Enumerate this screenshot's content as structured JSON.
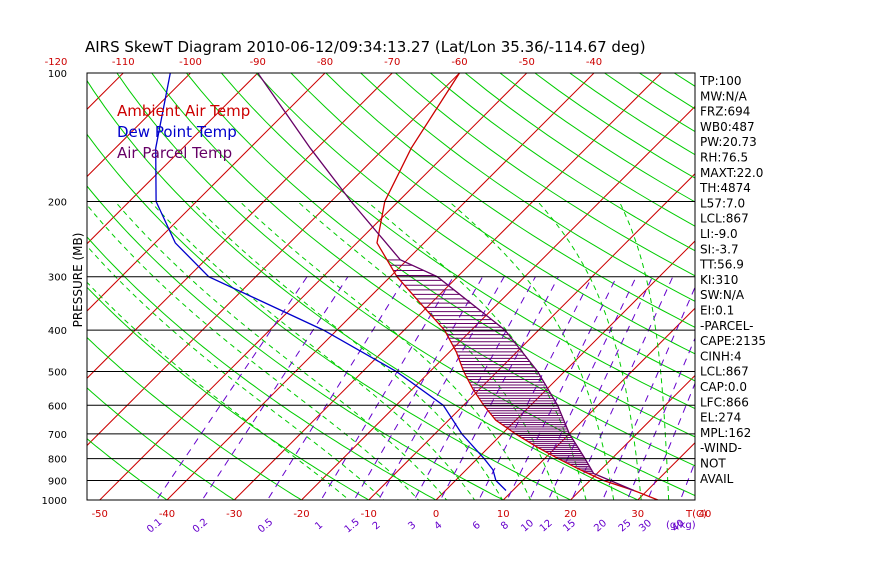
{
  "chart_data": {
    "type": "line",
    "title": "AIRS SkewT Diagram 2010-06-12/09:34:13.27 (Lat/Lon 35.36/-114.67 deg)",
    "ylabel": "PRESSURE (MB)",
    "xlabel_bottom_unit": "T(C)",
    "mixing_ratio_unit": "(g/kg)",
    "pressure_ticks": [
      "100",
      "200",
      "300",
      "400",
      "500",
      "600",
      "700",
      "800",
      "900",
      "1000"
    ],
    "top_temp_ticks": [
      "-120",
      "-110",
      "-100",
      "-90",
      "-80",
      "-70",
      "-60",
      "-50",
      "-40"
    ],
    "bottom_temp_ticks": [
      "-50",
      "-40",
      "-30",
      "-20",
      "-10",
      "0",
      "10",
      "20",
      "30",
      "40"
    ],
    "mixing_ratio_ticks": [
      "0.1",
      "0.2",
      "0.5",
      "1",
      "1.5",
      "2",
      "3",
      "4",
      "6",
      "8",
      "10",
      "12",
      "15",
      "20",
      "25",
      "30",
      "40"
    ],
    "legend": [
      "Ambient Air Temp",
      "Dew Point Temp",
      "Air Parcel Temp"
    ],
    "legend_placement": "top-left",
    "colors": {
      "ambient": "#cc0000",
      "dewpoint": "#0000cc",
      "parcel": "#660066",
      "isotherm": "#cc0000",
      "dry_adiabat": "#00cc00",
      "moist_adiabat": "#00cc00",
      "mixing_ratio": "#6600cc",
      "cape_hatch": "#660066"
    },
    "series": [
      {
        "name": "Ambient Air Temp",
        "points": [
          [
            1000,
            33
          ],
          [
            950,
            28
          ],
          [
            900,
            22
          ],
          [
            850,
            17
          ],
          [
            800,
            12
          ],
          [
            750,
            7
          ],
          [
            700,
            2
          ],
          [
            650,
            -3
          ],
          [
            600,
            -7
          ],
          [
            550,
            -11
          ],
          [
            500,
            -15
          ],
          [
            450,
            -19
          ],
          [
            400,
            -24
          ],
          [
            350,
            -31
          ],
          [
            300,
            -39
          ],
          [
            250,
            -47
          ],
          [
            200,
            -52
          ],
          [
            150,
            -56
          ],
          [
            100,
            -60
          ]
        ]
      },
      {
        "name": "Dew Point Temp",
        "points": [
          [
            950,
            9
          ],
          [
            900,
            6
          ],
          [
            850,
            4
          ],
          [
            800,
            1
          ],
          [
            700,
            -6
          ],
          [
            600,
            -13
          ],
          [
            500,
            -25
          ],
          [
            400,
            -42
          ],
          [
            300,
            -67
          ],
          [
            250,
            -77
          ],
          [
            200,
            -86
          ],
          [
            150,
            -94
          ],
          [
            100,
            -103
          ]
        ]
      },
      {
        "name": "Air Parcel Temp",
        "points": [
          [
            950,
            28
          ],
          [
            900,
            23
          ],
          [
            867,
            19.5
          ],
          [
            800,
            16
          ],
          [
            700,
            10
          ],
          [
            600,
            4
          ],
          [
            500,
            -4
          ],
          [
            400,
            -15
          ],
          [
            300,
            -33
          ],
          [
            274,
            -41
          ],
          [
            200,
            -57
          ],
          [
            150,
            -71
          ],
          [
            100,
            -90
          ]
        ]
      }
    ],
    "indices": [
      "TP:100",
      "MW:N/A",
      "FRZ:694",
      "WB0:487",
      "PW:20.73",
      "RH:76.5",
      "MAXT:22.0",
      "TH:4874",
      "L57:7.0",
      "LCL:867",
      "LI:-9.0",
      "SI:-3.7",
      "TT:56.9",
      "KI:310",
      "SW:N/A",
      "EI:0.1",
      "-PARCEL-",
      "CAPE:2135",
      "CINH:4",
      "LCL:867",
      "CAP:0.0",
      "LFC:866",
      "EL:274",
      "MPL:162",
      "-WIND-",
      "NOT",
      "AVAIL"
    ]
  }
}
